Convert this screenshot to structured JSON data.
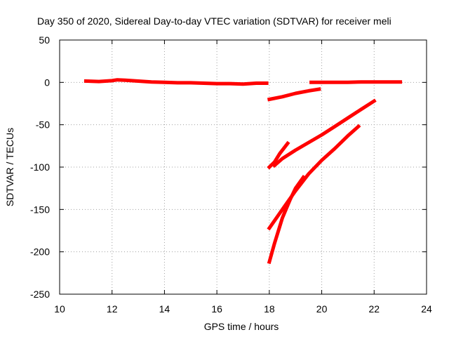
{
  "chart_data": {
    "type": "line",
    "title": "Day 350 of 2020, Sidereal Day-to-day VTEC variation (SDTVAR) for receiver meli",
    "xlabel": "GPS time / hours",
    "ylabel": "SDTVAR / TECUs",
    "xlim": [
      10,
      24
    ],
    "ylim": [
      -250,
      50
    ],
    "xticks": [
      10,
      12,
      14,
      16,
      18,
      20,
      22,
      24
    ],
    "yticks": [
      -250,
      -200,
      -150,
      -100,
      -50,
      0,
      50
    ],
    "grid": true,
    "legend": "none",
    "series_color": "#ff0000",
    "series": [
      {
        "x": [
          11.0,
          11.5,
          12.0,
          12.2,
          12.5,
          13.0,
          13.5,
          14.0,
          14.5,
          15.0,
          15.5,
          16.0,
          16.5,
          17.0,
          17.5,
          17.9
        ],
        "y": [
          1.5,
          1.0,
          2.0,
          3.0,
          2.5,
          1.5,
          0.5,
          0.0,
          -0.5,
          -0.5,
          -1.0,
          -1.5,
          -1.5,
          -2.0,
          -1.0,
          -1.0
        ]
      },
      {
        "x": [
          18.0,
          18.5,
          19.0,
          19.5,
          19.9
        ],
        "y": [
          -20,
          -17,
          -13,
          -10,
          -8
        ]
      },
      {
        "x": [
          19.6,
          20.0,
          20.5,
          21.0,
          21.5,
          22.0,
          22.5,
          23.0
        ],
        "y": [
          0,
          0,
          0,
          0,
          0.5,
          0.5,
          0.5,
          0.5
        ]
      },
      {
        "x": [
          18.0,
          18.2,
          18.4,
          18.7
        ],
        "y": [
          -100,
          -94,
          -84,
          -72
        ]
      },
      {
        "x": [
          18.2,
          18.5,
          19.0,
          19.5,
          20.0,
          20.5,
          21.0,
          21.5,
          22.0
        ],
        "y": [
          -98,
          -90,
          -80,
          -71,
          -62,
          -52,
          -42,
          -32,
          -22
        ]
      },
      {
        "x": [
          18.0,
          18.5,
          19.0,
          19.5,
          20.0,
          20.5,
          21.0,
          21.4
        ],
        "y": [
          -172,
          -150,
          -128,
          -108,
          -92,
          -78,
          -63,
          -52
        ]
      },
      {
        "x": [
          18.0,
          18.2,
          18.5,
          18.8,
          19.0,
          19.3
        ],
        "y": [
          -212,
          -190,
          -160,
          -138,
          -125,
          -112
        ]
      }
    ]
  }
}
